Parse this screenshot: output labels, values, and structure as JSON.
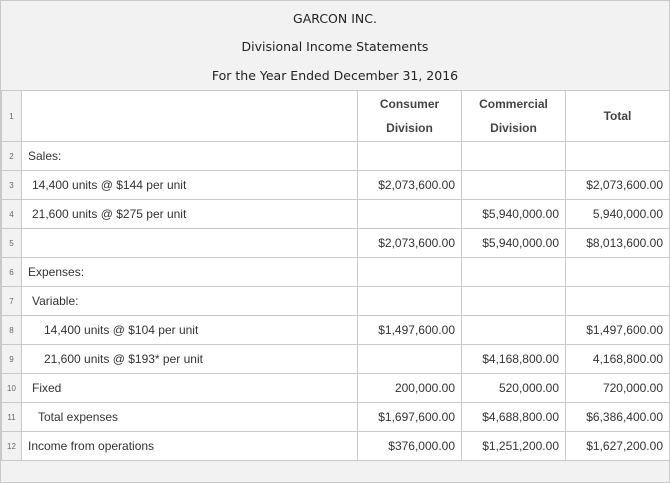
{
  "header": {
    "company": "GARCON INC.",
    "statement": "Divisional Income Statements",
    "period": "For the Year Ended December 31, 2016"
  },
  "columns": {
    "consumer_line1": "Consumer",
    "consumer_line2": "Division",
    "commercial_line1": "Commercial",
    "commercial_line2": "Division",
    "total": "Total"
  },
  "rows": [
    {
      "n": "1"
    },
    {
      "n": "2",
      "label": "Sales:",
      "consumer": "",
      "commercial": "",
      "total": ""
    },
    {
      "n": "3",
      "label": "14,400 units @ $144 per unit",
      "consumer": "$2,073,600.00",
      "commercial": "",
      "total": "$2,073,600.00"
    },
    {
      "n": "4",
      "label": "21,600 units @ $275 per unit",
      "consumer": "",
      "commercial": "$5,940,000.00",
      "total": "5,940,000.00"
    },
    {
      "n": "5",
      "label": "",
      "consumer": "$2,073,600.00",
      "commercial": "$5,940,000.00",
      "total": "$8,013,600.00"
    },
    {
      "n": "6",
      "label": "Expenses:",
      "consumer": "",
      "commercial": "",
      "total": ""
    },
    {
      "n": "7",
      "label": "Variable:",
      "consumer": "",
      "commercial": "",
      "total": ""
    },
    {
      "n": "8",
      "label": "14,400 units @ $104 per unit",
      "consumer": "$1,497,600.00",
      "commercial": "",
      "total": "$1,497,600.00"
    },
    {
      "n": "9",
      "label": "21,600 units @ $193* per unit",
      "consumer": "",
      "commercial": "$4,168,800.00",
      "total": "4,168,800.00"
    },
    {
      "n": "10",
      "label": "Fixed",
      "consumer": "200,000.00",
      "commercial": "520,000.00",
      "total": "720,000.00"
    },
    {
      "n": "11",
      "label": "Total expenses",
      "consumer": "$1,697,600.00",
      "commercial": "$4,688,800.00",
      "total": "$6,386,400.00"
    },
    {
      "n": "12",
      "label": "Income from operations",
      "consumer": "$376,000.00",
      "commercial": "$1,251,200.00",
      "total": "$1,627,200.00"
    }
  ]
}
